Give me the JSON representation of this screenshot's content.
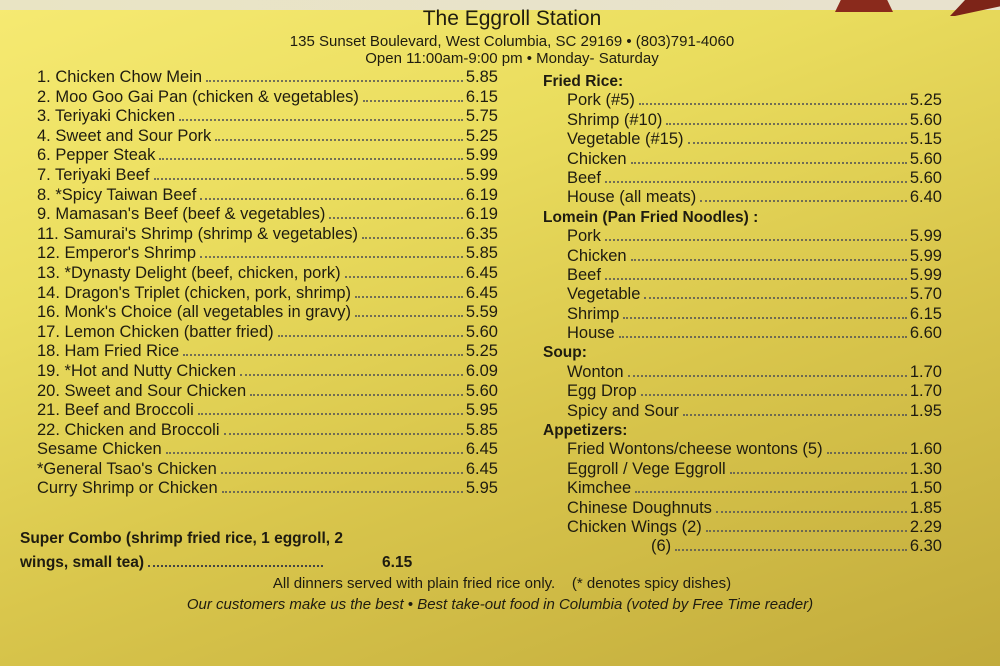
{
  "header": {
    "title": "The Eggroll Station",
    "address": "135 Sunset Boulevard, West Columbia, SC 29169 • (803)791-4060",
    "hours": "Open 11:00am-9:00 pm • Monday- Saturday"
  },
  "dinners": [
    {
      "name": "1. Chicken Chow Mein",
      "price": "5.85"
    },
    {
      "name": "2. Moo Goo Gai Pan (chicken & vegetables)",
      "price": "6.15"
    },
    {
      "name": "3. Teriyaki Chicken",
      "price": "5.75"
    },
    {
      "name": "4. Sweet and Sour Pork",
      "price": "5.25"
    },
    {
      "name": "6. Pepper Steak",
      "price": "5.99"
    },
    {
      "name": "7. Teriyaki Beef",
      "price": "5.99"
    },
    {
      "name": "8. *Spicy Taiwan Beef",
      "price": "6.19"
    },
    {
      "name": "9. Mamasan's Beef (beef & vegetables)",
      "price": "6.19"
    },
    {
      "name": "11. Samurai's Shrimp (shrimp & vegetables)",
      "price": "6.35"
    },
    {
      "name": "12. Emperor's Shrimp",
      "price": "5.85"
    },
    {
      "name": "13. *Dynasty Delight (beef, chicken, pork)",
      "price": "6.45"
    },
    {
      "name": "14. Dragon's Triplet (chicken, pork, shrimp)",
      "price": "6.45"
    },
    {
      "name": "16. Monk's Choice (all vegetables in gravy)",
      "price": "5.59"
    },
    {
      "name": "17. Lemon Chicken (batter fried)",
      "price": "5.60"
    },
    {
      "name": "18. Ham Fried Rice",
      "price": "5.25"
    },
    {
      "name": "19. *Hot and Nutty Chicken",
      "price": "6.09"
    },
    {
      "name": "20. Sweet and Sour Chicken",
      "price": "5.60"
    },
    {
      "name": "21. Beef and Broccoli",
      "price": "5.95"
    },
    {
      "name": "22. Chicken and Broccoli",
      "price": "5.85"
    },
    {
      "name": "Sesame Chicken",
      "price": "6.45"
    },
    {
      "name": "*General Tsao's Chicken",
      "price": "6.45"
    },
    {
      "name": "Curry Shrimp or Chicken",
      "price": "5.95"
    }
  ],
  "sections": [
    {
      "title": "Fried Rice:",
      "items": [
        {
          "name": "Pork (#5)",
          "price": "5.25"
        },
        {
          "name": "Shrimp (#10)",
          "price": "5.60"
        },
        {
          "name": "Vegetable (#15)",
          "price": "5.15"
        },
        {
          "name": "Chicken",
          "price": "5.60"
        },
        {
          "name": "Beef",
          "price": "5.60"
        },
        {
          "name": "House (all meats)",
          "price": "6.40"
        }
      ]
    },
    {
      "title": "Lomein (Pan Fried Noodles) :",
      "items": [
        {
          "name": "Pork",
          "price": "5.99"
        },
        {
          "name": "Chicken",
          "price": "5.99"
        },
        {
          "name": "Beef",
          "price": "5.99"
        },
        {
          "name": "Vegetable",
          "price": "5.70"
        },
        {
          "name": "Shrimp",
          "price": "6.15"
        },
        {
          "name": "House",
          "price": "6.60"
        }
      ]
    },
    {
      "title": "Soup:",
      "items": [
        {
          "name": "Wonton",
          "price": "1.70"
        },
        {
          "name": "Egg Drop",
          "price": "1.70"
        },
        {
          "name": "Spicy and Sour",
          "price": "1.95"
        }
      ]
    },
    {
      "title": "Appetizers:",
      "items": [
        {
          "name": "Fried Wontons/cheese wontons (5)",
          "price": "1.60"
        },
        {
          "name": "Eggroll / Vege Eggroll",
          "price": "1.30"
        },
        {
          "name": "Kimchee",
          "price": "1.50"
        },
        {
          "name": "Chinese Doughnuts",
          "price": "1.85"
        },
        {
          "name": "Chicken Wings (2)",
          "price": "2.29"
        },
        {
          "name": "(6)",
          "price": "6.30",
          "indent": true
        }
      ]
    }
  ],
  "combo": {
    "line1": "Super Combo (shrimp fried rice, 1 eggroll, 2",
    "line2": "wings, small tea)",
    "price": "6.15"
  },
  "footer": {
    "note": "All dinners served with plain fried rice only.    (* denotes spicy dishes)",
    "tagline": "Our customers make us the best • Best take-out food in Columbia (voted by Free Time reader)"
  },
  "colors": {
    "paper": "#eadd5e",
    "text": "#1f1c10"
  }
}
